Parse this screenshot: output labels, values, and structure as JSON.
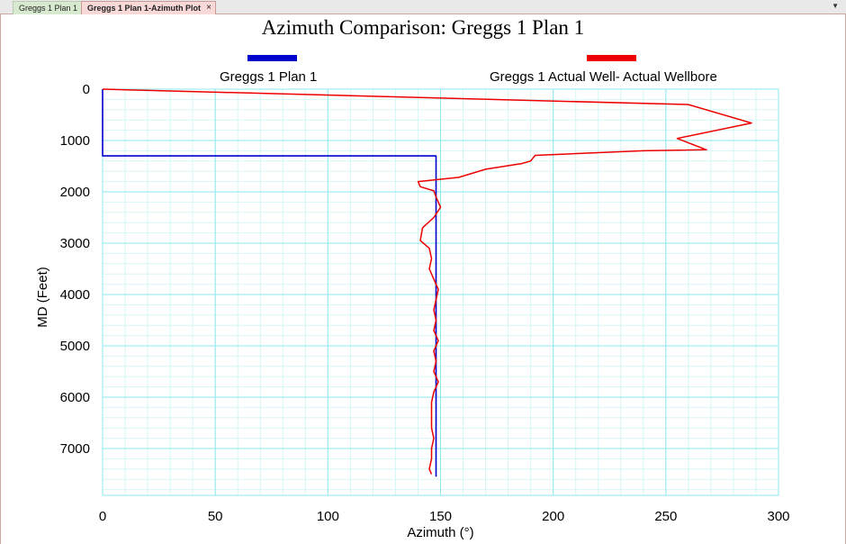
{
  "tabs": [
    {
      "label": "Greggs 1 Plan 1"
    },
    {
      "label": "Greggs 1 Plan 1-Azimuth Plot",
      "close": "×"
    }
  ],
  "menu_arrow": "▼",
  "chart_data": {
    "type": "line",
    "title": "Azimuth Comparison: Greggs 1 Plan 1",
    "xlabel": "Azimuth (°)",
    "ylabel": "MD (Feet)",
    "xlim": [
      0,
      300
    ],
    "ylim": [
      0,
      7500
    ],
    "y_inverted": true,
    "x_ticks": [
      0,
      50,
      100,
      150,
      200,
      250,
      300
    ],
    "y_ticks": [
      0,
      1000,
      2000,
      3000,
      4000,
      5000,
      6000,
      7000
    ],
    "grid": true,
    "legend_placement": "top",
    "series": [
      {
        "name": "Greggs 1 Plan 1",
        "color": "#0000cc",
        "points": [
          [
            0,
            0
          ],
          [
            0,
            1300
          ],
          [
            148,
            1300
          ],
          [
            148,
            7550
          ]
        ]
      },
      {
        "name": "Greggs 1 Actual Well- Actual Wellbore",
        "color": "#ee0000",
        "points": [
          [
            0,
            0
          ],
          [
            260,
            300
          ],
          [
            288,
            660
          ],
          [
            255,
            960
          ],
          [
            268,
            1180
          ],
          [
            240,
            1200
          ],
          [
            192,
            1290
          ],
          [
            190,
            1400
          ],
          [
            186,
            1450
          ],
          [
            170,
            1560
          ],
          [
            158,
            1720
          ],
          [
            140,
            1800
          ],
          [
            141,
            1900
          ],
          [
            147,
            1980
          ],
          [
            148,
            2100
          ],
          [
            150,
            2300
          ],
          [
            147,
            2500
          ],
          [
            142,
            2700
          ],
          [
            141,
            2950
          ],
          [
            145,
            3100
          ],
          [
            146,
            3300
          ],
          [
            145,
            3500
          ],
          [
            147,
            3700
          ],
          [
            149,
            3900
          ],
          [
            148,
            4100
          ],
          [
            147,
            4300
          ],
          [
            148,
            4500
          ],
          [
            147,
            4700
          ],
          [
            149,
            4900
          ],
          [
            147,
            5100
          ],
          [
            148,
            5300
          ],
          [
            147,
            5500
          ],
          [
            149,
            5700
          ],
          [
            147,
            5900
          ],
          [
            146,
            6100
          ],
          [
            146,
            6300
          ],
          [
            146,
            6600
          ],
          [
            147,
            6800
          ],
          [
            146,
            7000
          ],
          [
            146,
            7200
          ],
          [
            145,
            7400
          ],
          [
            146,
            7500
          ]
        ]
      }
    ]
  }
}
